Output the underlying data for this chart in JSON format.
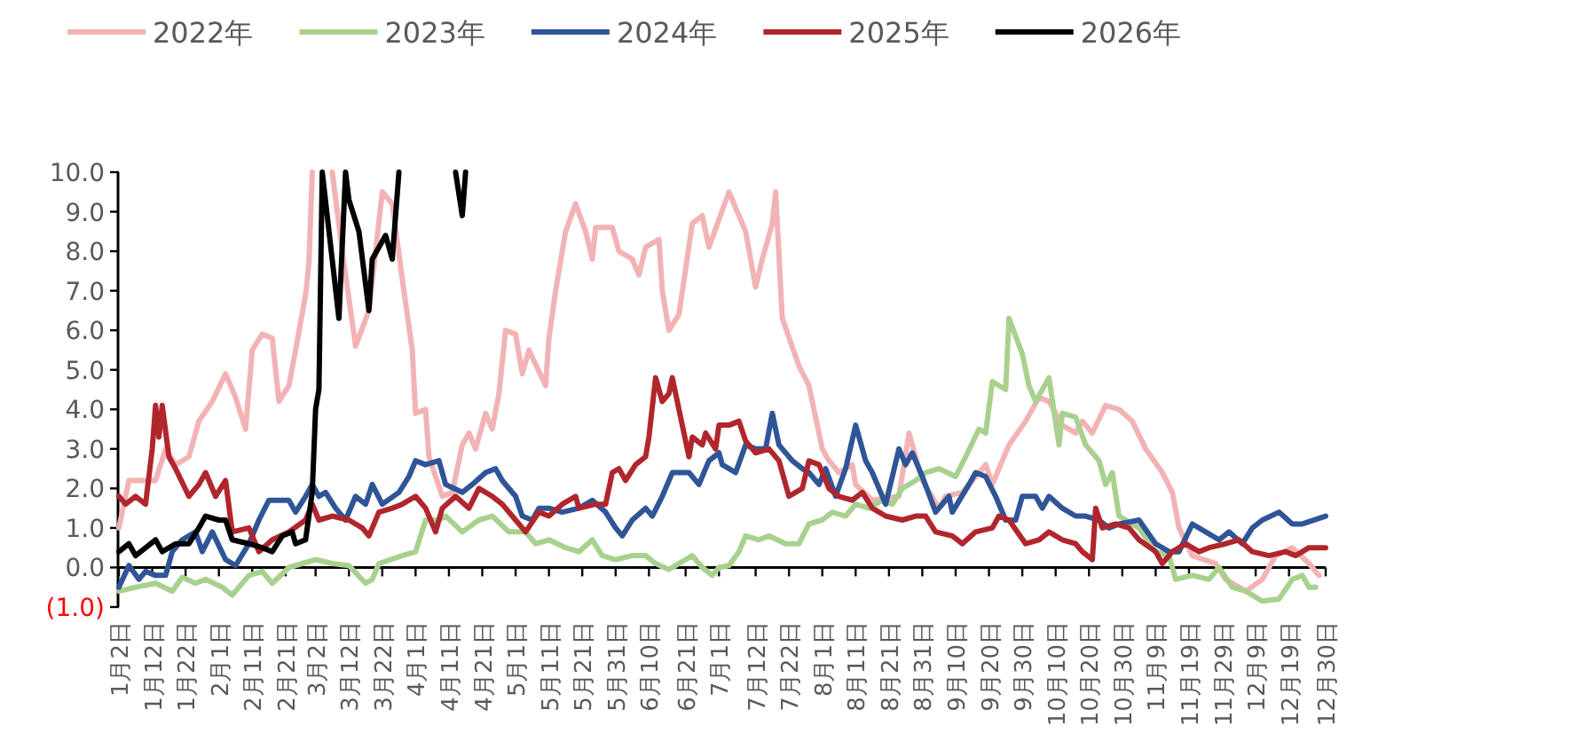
{
  "chart_data": {
    "type": "line",
    "xlim": [
      "--01-02",
      "--12-30"
    ],
    "ylim": [
      -1,
      10
    ],
    "legend": "top",
    "xticks": [
      {
        "value": "--01-02",
        "label": "1月2日"
      },
      {
        "value": "--01-12",
        "label": "1月12日"
      },
      {
        "value": "--01-22",
        "label": "1月22日"
      },
      {
        "value": "--02-01",
        "label": "2月1日"
      },
      {
        "value": "--02-11",
        "label": "2月11日"
      },
      {
        "value": "--02-21",
        "label": "2月21日"
      },
      {
        "value": "--03-02",
        "label": "3月2日"
      },
      {
        "value": "--03-12",
        "label": "3月12日"
      },
      {
        "value": "--03-22",
        "label": "3月22日"
      },
      {
        "value": "--04-01",
        "label": "4月1日"
      },
      {
        "value": "--04-11",
        "label": "4月11日"
      },
      {
        "value": "--04-21",
        "label": "4月21日"
      },
      {
        "value": "--05-01",
        "label": "5月1日"
      },
      {
        "value": "--05-11",
        "label": "5月11日"
      },
      {
        "value": "--05-21",
        "label": "5月21日"
      },
      {
        "value": "--05-31",
        "label": "5月31日"
      },
      {
        "value": "--06-10",
        "label": "6月10日"
      },
      {
        "value": "--06-21",
        "label": "6月21日"
      },
      {
        "value": "--07-01",
        "label": "7月1日"
      },
      {
        "value": "--07-12",
        "label": "7月12日"
      },
      {
        "value": "--07-22",
        "label": "7月22日"
      },
      {
        "value": "--08-01",
        "label": "8月1日"
      },
      {
        "value": "--08-11",
        "label": "8月11日"
      },
      {
        "value": "--08-21",
        "label": "8月21日"
      },
      {
        "value": "--08-31",
        "label": "8月31日"
      },
      {
        "value": "--09-10",
        "label": "9月10日"
      },
      {
        "value": "--09-20",
        "label": "9月20日"
      },
      {
        "value": "--09-30",
        "label": "9月30日"
      },
      {
        "value": "--10-10",
        "label": "10月10日"
      },
      {
        "value": "--10-20",
        "label": "10月20日"
      },
      {
        "value": "--10-30",
        "label": "10月30日"
      },
      {
        "value": "--11-09",
        "label": "11月9日"
      },
      {
        "value": "--11-19",
        "label": "11月19日"
      },
      {
        "value": "--11-29",
        "label": "11月29日"
      },
      {
        "value": "--12-09",
        "label": "12月9日"
      },
      {
        "value": "--12-19",
        "label": "12月19日"
      },
      {
        "value": "--12-30",
        "label": "12月30日"
      }
    ],
    "yticks": [
      {
        "value": -1,
        "label": "(1.0)"
      },
      {
        "value": 0,
        "label": "0.0"
      },
      {
        "value": 1,
        "label": "1.0"
      },
      {
        "value": 2,
        "label": "2.0"
      },
      {
        "value": 3,
        "label": "3.0"
      },
      {
        "value": 4,
        "label": "4.0"
      },
      {
        "value": 5,
        "label": "5.0"
      },
      {
        "value": 6,
        "label": "6.0"
      },
      {
        "value": 7,
        "label": "7.0"
      },
      {
        "value": 8,
        "label": "8.0"
      },
      {
        "value": 9,
        "label": "9.0"
      },
      {
        "value": 10,
        "label": "10.0"
      }
    ],
    "series": [
      {
        "name": "2022年",
        "color": "#f2b3b5",
        "x": [
          "--01-02",
          "--01-05",
          "--01-13",
          "--01-16",
          "--01-19",
          "--01-23",
          "--01-26",
          "--01-30",
          "--02-03",
          "--02-06",
          "--02-09",
          "--02-11",
          "--02-14",
          "--02-17",
          "--02-19",
          "--02-22",
          "--02-24",
          "--02-27",
          "--02-28",
          "--03-01",
          "--03-04",
          "--03-07",
          "--03-10",
          "--03-14",
          "--03-18",
          "--03-22",
          "--03-25",
          "--03-28",
          "--03-31",
          "--04-01",
          "--04-04",
          "--04-05",
          "--04-09",
          "--04-12",
          "--04-15",
          "--04-17",
          "--04-19",
          "--04-22",
          "--04-24",
          "--04-26",
          "--04-28",
          "--05-01",
          "--05-03",
          "--05-05",
          "--05-10",
          "--05-11",
          "--05-13",
          "--05-16",
          "--05-19",
          "--05-22",
          "--05-24",
          "--05-25",
          "--05-30",
          "--06-01",
          "--06-05",
          "--06-07",
          "--06-09",
          "--06-13",
          "--06-14",
          "--06-16",
          "--06-19",
          "--06-23",
          "--06-26",
          "--06-28",
          "--07-01",
          "--07-04",
          "--07-09",
          "--07-12",
          "--07-14",
          "--07-17",
          "--07-18",
          "--07-20",
          "--07-25",
          "--07-28",
          "--08-01",
          "--08-03",
          "--08-06",
          "--08-10",
          "--08-11",
          "--08-16",
          "--08-24",
          "--08-27",
          "--08-31",
          "--09-05",
          "--09-07",
          "--09-12",
          "--09-19",
          "--09-21",
          "--09-26",
          "--10-01",
          "--10-05",
          "--10-08",
          "--10-12",
          "--10-16",
          "--10-18",
          "--10-21",
          "--10-25",
          "--10-29",
          "--11-02",
          "--11-06",
          "--11-11",
          "--11-14",
          "--11-16",
          "--11-20",
          "--11-27",
          "--11-30",
          "--12-06",
          "--12-11",
          "--12-15",
          "--12-20",
          "--12-25",
          "--12-28"
        ],
        "values": [
          1.0,
          2.2,
          2.2,
          3.0,
          2.6,
          2.8,
          3.7,
          4.2,
          4.9,
          4.3,
          3.5,
          5.5,
          5.9,
          5.8,
          4.2,
          4.6,
          5.5,
          6.9,
          7.7,
          10,
          null,
          10,
          8.0,
          5.6,
          6.5,
          9.5,
          9.2,
          7.3,
          5.5,
          3.9,
          4.0,
          2.8,
          1.8,
          1.9,
          3.1,
          3.4,
          3.0,
          3.9,
          3.5,
          4.4,
          6.0,
          5.9,
          4.9,
          5.5,
          4.6,
          5.8,
          7.0,
          8.5,
          9.2,
          8.5,
          7.8,
          8.6,
          8.6,
          8.0,
          7.8,
          7.4,
          8.1,
          8.3,
          7.0,
          6.0,
          6.4,
          8.7,
          8.9,
          8.1,
          8.8,
          9.5,
          8.5,
          7.1,
          7.8,
          8.7,
          9.5,
          6.3,
          5.1,
          4.6,
          3.0,
          2.7,
          2.4,
          2.6,
          2.1,
          1.7,
          1.8,
          3.4,
          2.2,
          1.5,
          1.8,
          1.9,
          2.6,
          2.1,
          3.1,
          3.7,
          4.3,
          4.2,
          3.6,
          3.4,
          3.7,
          3.4,
          4.1,
          4.0,
          3.7,
          3.0,
          2.4,
          1.9,
          1.0,
          0.3,
          0.1,
          -0.3,
          -0.6,
          -0.3,
          0.3,
          0.5,
          0.1,
          -0.2
        ]
      },
      {
        "name": "2023年",
        "color": "#a9d18e",
        "x": [
          "--01-02",
          "--01-07",
          "--01-13",
          "--01-18",
          "--01-21",
          "--01-25",
          "--01-28",
          "--02-02",
          "--02-05",
          "--02-10",
          "--02-14",
          "--02-17",
          "--02-22",
          "--02-26",
          "--03-02",
          "--03-07",
          "--03-12",
          "--03-17",
          "--03-19",
          "--03-21",
          "--03-28",
          "--04-01",
          "--04-04",
          "--04-08",
          "--04-10",
          "--04-15",
          "--04-20",
          "--04-24",
          "--04-29",
          "--05-04",
          "--05-07",
          "--05-11",
          "--05-16",
          "--05-20",
          "--05-24",
          "--05-27",
          "--05-31",
          "--06-05",
          "--06-09",
          "--06-12",
          "--06-16",
          "--06-19",
          "--06-23",
          "--06-26",
          "--06-29",
          "--07-01",
          "--07-04",
          "--07-07",
          "--07-09",
          "--07-13",
          "--07-16",
          "--07-21",
          "--07-25",
          "--07-28",
          "--08-01",
          "--08-04",
          "--08-08",
          "--08-11",
          "--08-15",
          "--08-19",
          "--08-22",
          "--08-25",
          "--08-29",
          "--09-01",
          "--09-05",
          "--09-10",
          "--09-13",
          "--09-17",
          "--09-19",
          "--09-21",
          "--09-25",
          "--09-26",
          "--09-30",
          "--10-02",
          "--10-04",
          "--10-08",
          "--10-11",
          "--10-12",
          "--10-16",
          "--10-19",
          "--10-23",
          "--10-25",
          "--10-27",
          "--10-29",
          "--11-04",
          "--11-09",
          "--11-13",
          "--11-15",
          "--11-20",
          "--11-25",
          "--11-28",
          "--12-02",
          "--12-06",
          "--12-11",
          "--12-16",
          "--12-20",
          "--12-23",
          "--12-25",
          "--12-27"
        ],
        "values": [
          -0.6,
          -0.5,
          -0.4,
          -0.6,
          -0.25,
          -0.4,
          -0.3,
          -0.5,
          -0.7,
          -0.2,
          -0.1,
          -0.4,
          0.0,
          0.1,
          0.2,
          0.1,
          0.05,
          -0.4,
          -0.3,
          0.1,
          0.3,
          0.4,
          1.2,
          1.2,
          1.3,
          0.9,
          1.2,
          1.3,
          0.9,
          0.9,
          0.6,
          0.7,
          0.5,
          0.4,
          0.7,
          0.3,
          0.2,
          0.3,
          0.3,
          0.1,
          -0.05,
          0.1,
          0.3,
          0.0,
          -0.2,
          0.0,
          0.05,
          0.4,
          0.8,
          0.7,
          0.8,
          0.6,
          0.6,
          1.1,
          1.2,
          1.4,
          1.3,
          1.6,
          1.5,
          1.7,
          1.6,
          2.0,
          2.2,
          2.4,
          2.5,
          2.3,
          2.8,
          3.5,
          3.4,
          4.7,
          4.5,
          6.3,
          5.4,
          4.6,
          4.2,
          4.8,
          3.1,
          3.9,
          3.8,
          3.1,
          2.7,
          2.1,
          2.4,
          1.3,
          1.0,
          0.4,
          0.3,
          -0.3,
          -0.2,
          -0.3,
          0.0,
          -0.5,
          -0.6,
          -0.85,
          -0.8,
          -0.3,
          -0.2,
          -0.5,
          -0.5
        ]
      },
      {
        "name": "2024年",
        "color": "#2f5597",
        "x": [
          "--01-02",
          "--01-05",
          "--01-08",
          "--01-10",
          "--01-13",
          "--01-16",
          "--01-18",
          "--01-21",
          "--01-25",
          "--01-27",
          "--01-30",
          "--02-03",
          "--02-06",
          "--02-10",
          "--02-13",
          "--02-16",
          "--02-22",
          "--02-24",
          "--02-27",
          "--03-01",
          "--03-03",
          "--03-05",
          "--03-08",
          "--03-11",
          "--03-14",
          "--03-17",
          "--03-19",
          "--03-22",
          "--03-27",
          "--03-30",
          "--04-01",
          "--04-04",
          "--04-08",
          "--04-10",
          "--04-15",
          "--04-18",
          "--04-22",
          "--04-25",
          "--04-27",
          "--05-01",
          "--05-03",
          "--05-06",
          "--05-08",
          "--05-11",
          "--05-15",
          "--05-20",
          "--05-24",
          "--05-28",
          "--05-31",
          "--06-02",
          "--06-05",
          "--06-09",
          "--06-11",
          "--06-14",
          "--06-17",
          "--06-22",
          "--06-25",
          "--06-28",
          "--07-01",
          "--07-02",
          "--07-06",
          "--07-09",
          "--07-12",
          "--07-15",
          "--07-17",
          "--07-19",
          "--07-23",
          "--07-26",
          "--07-28",
          "--07-31",
          "--08-02",
          "--08-05",
          "--08-08",
          "--08-11",
          "--08-14",
          "--08-16",
          "--08-20",
          "--08-24",
          "--08-26",
          "--08-28",
          "--08-31",
          "--09-04",
          "--09-08",
          "--09-09",
          "--09-14",
          "--09-16",
          "--09-19",
          "--09-22",
          "--09-25",
          "--09-28",
          "--09-30",
          "--10-04",
          "--10-06",
          "--10-08",
          "--10-12",
          "--10-16",
          "--10-19",
          "--10-23",
          "--10-26",
          "--10-29",
          "--11-04",
          "--11-09",
          "--11-13",
          "--11-16",
          "--11-20",
          "--11-24",
          "--11-28",
          "--12-01",
          "--12-05",
          "--12-08",
          "--12-11",
          "--12-16",
          "--12-20",
          "--12-23",
          "--12-30"
        ],
        "values": [
          -0.5,
          0.05,
          -0.3,
          -0.1,
          -0.2,
          -0.2,
          0.4,
          0.7,
          0.9,
          0.4,
          0.9,
          0.2,
          0.05,
          0.6,
          1.2,
          1.7,
          1.7,
          1.4,
          1.8,
          2.1,
          1.8,
          1.9,
          1.5,
          1.2,
          1.8,
          1.6,
          2.1,
          1.6,
          1.9,
          2.3,
          2.7,
          2.6,
          2.7,
          2.1,
          1.9,
          2.1,
          2.4,
          2.5,
          2.2,
          1.8,
          1.3,
          1.2,
          1.5,
          1.5,
          1.4,
          1.5,
          1.7,
          1.4,
          1.0,
          0.8,
          1.2,
          1.5,
          1.3,
          1.8,
          2.4,
          2.4,
          2.1,
          2.7,
          2.9,
          2.6,
          2.4,
          3.1,
          3.0,
          3.0,
          3.9,
          3.1,
          2.7,
          2.5,
          2.4,
          2.1,
          2.5,
          1.8,
          2.5,
          3.6,
          2.7,
          2.4,
          1.6,
          3.0,
          2.6,
          2.9,
          2.3,
          1.4,
          1.8,
          1.4,
          2.1,
          2.4,
          2.3,
          1.8,
          1.2,
          1.2,
          1.8,
          1.8,
          1.5,
          1.8,
          1.5,
          1.3,
          1.3,
          1.2,
          1.0,
          1.1,
          1.2,
          0.6,
          0.4,
          0.4,
          1.1,
          0.9,
          0.7,
          0.9,
          0.6,
          1.0,
          1.2,
          1.4,
          1.1,
          1.1,
          1.3
        ]
      },
      {
        "name": "2025年",
        "color": "#b0262c",
        "x": [
          "--01-02",
          "--01-04",
          "--01-07",
          "--01-10",
          "--01-12",
          "--01-13",
          "--01-14",
          "--01-15",
          "--01-17",
          "--01-19",
          "--01-23",
          "--01-26",
          "--01-28",
          "--01-31",
          "--02-03",
          "--02-05",
          "--02-10",
          "--02-13",
          "--02-17",
          "--02-22",
          "--02-27",
          "--03-01",
          "--03-03",
          "--03-07",
          "--03-12",
          "--03-16",
          "--03-18",
          "--03-21",
          "--03-25",
          "--03-28",
          "--04-01",
          "--04-04",
          "--04-07",
          "--04-09",
          "--04-13",
          "--04-17",
          "--04-20",
          "--04-24",
          "--04-27",
          "--05-01",
          "--05-04",
          "--05-08",
          "--05-11",
          "--05-15",
          "--05-19",
          "--05-20",
          "--05-25",
          "--05-28",
          "--05-30",
          "--06-01",
          "--06-03",
          "--06-06",
          "--06-09",
          "--06-10",
          "--06-12",
          "--06-14",
          "--06-16",
          "--06-17",
          "--06-19",
          "--06-22",
          "--06-23",
          "--06-26",
          "--06-27",
          "--06-30",
          "--07-01",
          "--07-04",
          "--07-07",
          "--07-09",
          "--07-12",
          "--07-16",
          "--07-19",
          "--07-22",
          "--07-26",
          "--07-28",
          "--07-31",
          "--08-03",
          "--08-06",
          "--08-10",
          "--08-13",
          "--08-16",
          "--08-20",
          "--08-25",
          "--08-29",
          "--09-01",
          "--09-04",
          "--09-09",
          "--09-12",
          "--09-16",
          "--09-21",
          "--09-23",
          "--09-26",
          "--10-01",
          "--10-05",
          "--10-08",
          "--10-12",
          "--10-16",
          "--10-18",
          "--10-21",
          "--10-22",
          "--10-24",
          "--10-28",
          "--11-01",
          "--11-04",
          "--11-09",
          "--11-11",
          "--11-14",
          "--11-18",
          "--11-22",
          "--11-25",
          "--11-30",
          "--12-04",
          "--12-08",
          "--12-13",
          "--12-18",
          "--12-21",
          "--12-25",
          "--12-30"
        ],
        "values": [
          1.8,
          1.6,
          1.8,
          1.6,
          3.0,
          4.1,
          3.3,
          4.1,
          2.8,
          2.5,
          1.8,
          2.1,
          2.4,
          1.8,
          2.2,
          0.9,
          1.0,
          0.4,
          0.7,
          0.9,
          1.2,
          1.6,
          1.2,
          1.3,
          1.2,
          1.0,
          0.8,
          1.4,
          1.5,
          1.6,
          1.8,
          1.5,
          0.9,
          1.5,
          1.8,
          1.5,
          2.0,
          1.8,
          1.6,
          1.2,
          0.9,
          1.4,
          1.3,
          1.6,
          1.8,
          1.5,
          1.6,
          1.6,
          2.4,
          2.5,
          2.2,
          2.6,
          2.8,
          3.3,
          4.8,
          4.2,
          4.4,
          4.8,
          4.0,
          2.8,
          3.3,
          3.1,
          3.4,
          3.0,
          3.6,
          3.6,
          3.7,
          3.2,
          2.9,
          3.0,
          2.7,
          1.8,
          2.0,
          2.7,
          2.6,
          2.0,
          1.8,
          1.7,
          1.9,
          1.5,
          1.3,
          1.2,
          1.3,
          1.3,
          0.9,
          0.8,
          0.6,
          0.9,
          1.0,
          1.3,
          1.2,
          0.6,
          0.7,
          0.9,
          0.7,
          0.6,
          0.4,
          0.2,
          1.5,
          1.0,
          1.1,
          1.0,
          0.7,
          0.4,
          0.1,
          0.4,
          0.6,
          0.4,
          0.5,
          0.6,
          0.7,
          0.4,
          0.3,
          0.4,
          0.3,
          0.5,
          0.5
        ]
      },
      {
        "name": "2026年",
        "color": "#000000",
        "x": [
          "--01-02",
          "--01-05",
          "--01-07",
          "--01-13",
          "--01-15",
          "--01-19",
          "--01-23",
          "--01-26",
          "--01-28",
          "--02-01",
          "--02-03",
          "--02-05",
          "--02-10",
          "--02-14",
          "--02-17",
          "--02-20",
          "--02-23",
          "--02-24",
          "--02-27",
          "--03-01",
          "--03-02",
          "--03-03",
          "--03-04",
          "--03-09",
          "--03-11",
          "--03-12",
          "--03-15",
          "--03-18",
          "--03-19",
          "--03-23",
          "--03-25",
          "--03-27",
          "--04-06",
          "--04-13",
          "--04-15",
          "--04-16"
        ],
        "values": [
          0.4,
          0.6,
          0.3,
          0.7,
          0.4,
          0.6,
          0.6,
          1.0,
          1.3,
          1.2,
          1.2,
          0.7,
          0.6,
          0.5,
          0.4,
          0.8,
          0.9,
          0.6,
          0.7,
          1.9,
          4.0,
          4.5,
          10,
          6.3,
          10,
          9.3,
          8.5,
          6.5,
          7.8,
          8.4,
          7.8,
          10,
          null,
          10,
          8.9,
          10
        ]
      }
    ]
  }
}
